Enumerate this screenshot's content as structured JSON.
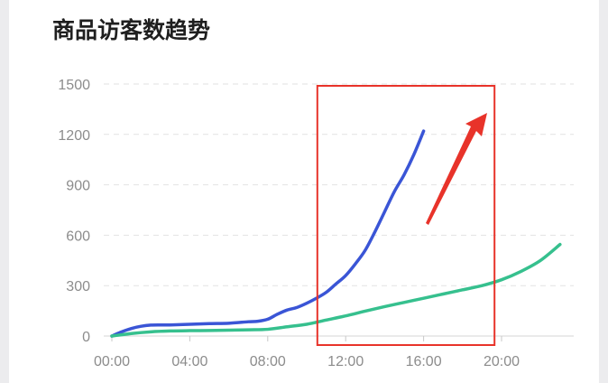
{
  "chart_data": {
    "type": "line",
    "title": "商品访客数趋势",
    "xlabel": "",
    "ylabel": "",
    "ylim": [
      0,
      1500
    ],
    "xlim_hours": [
      0,
      23
    ],
    "x_ticks": [
      "00:00",
      "04:00",
      "08:00",
      "12:00",
      "16:00",
      "20:00"
    ],
    "y_ticks": [
      0,
      300,
      600,
      900,
      1200,
      1500
    ],
    "grid": "horizontal dashed",
    "series": [
      {
        "color": "#3a55d6",
        "points": [
          [
            "00:00",
            0
          ],
          [
            "00:30",
            25
          ],
          [
            "01:00",
            45
          ],
          [
            "01:30",
            58
          ],
          [
            "02:00",
            65
          ],
          [
            "02:30",
            66
          ],
          [
            "03:00",
            66
          ],
          [
            "04:00",
            70
          ],
          [
            "05:00",
            74
          ],
          [
            "06:00",
            76
          ],
          [
            "07:00",
            85
          ],
          [
            "07:30",
            88
          ],
          [
            "08:00",
            100
          ],
          [
            "08:30",
            130
          ],
          [
            "09:00",
            155
          ],
          [
            "09:30",
            170
          ],
          [
            "10:00",
            195
          ],
          [
            "10:30",
            225
          ],
          [
            "11:00",
            260
          ],
          [
            "11:30",
            310
          ],
          [
            "12:00",
            360
          ],
          [
            "12:30",
            430
          ],
          [
            "13:00",
            510
          ],
          [
            "13:30",
            620
          ],
          [
            "14:00",
            740
          ],
          [
            "14:30",
            860
          ],
          [
            "15:00",
            960
          ],
          [
            "15:30",
            1080
          ],
          [
            "16:00",
            1220
          ]
        ]
      },
      {
        "color": "#36c08e",
        "points": [
          [
            "00:00",
            0
          ],
          [
            "01:00",
            15
          ],
          [
            "02:00",
            25
          ],
          [
            "03:00",
            30
          ],
          [
            "04:00",
            32
          ],
          [
            "05:00",
            33
          ],
          [
            "06:00",
            35
          ],
          [
            "07:00",
            37
          ],
          [
            "08:00",
            40
          ],
          [
            "09:00",
            55
          ],
          [
            "10:00",
            70
          ],
          [
            "11:00",
            95
          ],
          [
            "12:00",
            120
          ],
          [
            "13:00",
            148
          ],
          [
            "14:00",
            175
          ],
          [
            "15:00",
            200
          ],
          [
            "16:00",
            225
          ],
          [
            "17:00",
            250
          ],
          [
            "18:00",
            275
          ],
          [
            "19:00",
            300
          ],
          [
            "20:00",
            335
          ],
          [
            "21:00",
            385
          ],
          [
            "22:00",
            450
          ],
          [
            "23:00",
            545
          ]
        ]
      }
    ],
    "annotations": [
      {
        "type": "rectangle",
        "color": "#e8332a",
        "x_from": "10:30",
        "x_to": "19:30",
        "y_from": 0,
        "y_to": 1500
      },
      {
        "type": "arrow",
        "color": "#e8332a",
        "direction": "up-right"
      }
    ]
  }
}
